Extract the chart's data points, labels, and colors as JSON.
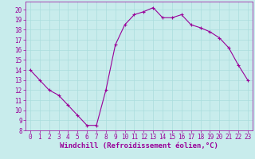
{
  "x": [
    0,
    1,
    2,
    3,
    4,
    5,
    6,
    7,
    8,
    9,
    10,
    11,
    12,
    13,
    14,
    15,
    16,
    17,
    18,
    19,
    20,
    21,
    22,
    23
  ],
  "y": [
    14,
    13,
    12,
    11.5,
    10.5,
    9.5,
    8.5,
    8.5,
    12,
    16.5,
    18.5,
    19.5,
    19.8,
    20.2,
    19.2,
    19.2,
    19.5,
    18.5,
    18.2,
    17.8,
    17.2,
    16.2,
    14.5,
    13
  ],
  "line_color": "#990099",
  "marker": "+",
  "marker_size": 3,
  "marker_color": "#990099",
  "background_color": "#c8ecec",
  "grid_color": "#aadddd",
  "xlabel": "Windchill (Refroidissement éolien,°C)",
  "xlabel_color": "#990099",
  "xlabel_fontsize": 6.5,
  "tick_color": "#990099",
  "tick_fontsize": 5.5,
  "xlim": [
    -0.5,
    23.5
  ],
  "ylim": [
    8,
    20.8
  ],
  "yticks": [
    8,
    9,
    10,
    11,
    12,
    13,
    14,
    15,
    16,
    17,
    18,
    19,
    20
  ],
  "xticks": [
    0,
    1,
    2,
    3,
    4,
    5,
    6,
    7,
    8,
    9,
    10,
    11,
    12,
    13,
    14,
    15,
    16,
    17,
    18,
    19,
    20,
    21,
    22,
    23
  ]
}
